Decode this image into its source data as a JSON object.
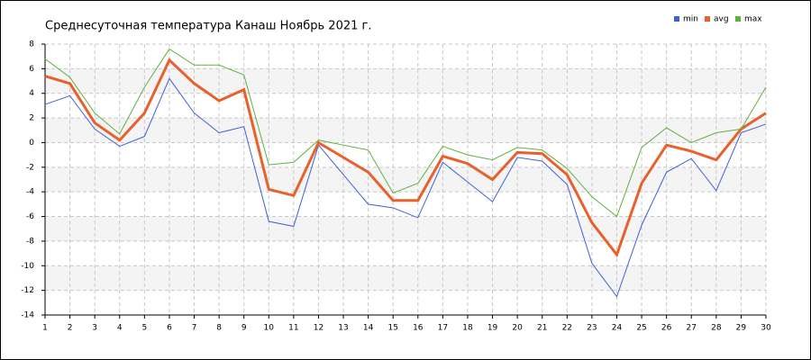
{
  "chart_data": {
    "type": "line",
    "title": "Среднесуточная температура Канаш  Ноябрь 2021 г.",
    "x": [
      1,
      2,
      3,
      4,
      5,
      6,
      7,
      8,
      9,
      10,
      11,
      12,
      13,
      14,
      15,
      16,
      17,
      18,
      19,
      20,
      21,
      22,
      23,
      24,
      25,
      26,
      27,
      28,
      29,
      30
    ],
    "series": [
      {
        "name": "min",
        "color": "#4060d8",
        "values": [
          3.1,
          3.8,
          1.1,
          -0.3,
          0.5,
          5.2,
          2.4,
          0.8,
          1.3,
          -6.4,
          -6.8,
          -0.2,
          -2.6,
          -5.0,
          -5.3,
          -6.1,
          -1.6,
          -3.2,
          -4.8,
          -1.2,
          -1.5,
          -3.4,
          -9.8,
          -12.5,
          -6.7,
          -2.4,
          -1.3,
          -3.9,
          0.8,
          1.5
        ]
      },
      {
        "name": "avg",
        "color": "#e8602c",
        "values": [
          5.4,
          4.8,
          1.6,
          0.2,
          2.4,
          6.7,
          4.8,
          3.4,
          4.3,
          -3.8,
          -4.3,
          0.0,
          -1.2,
          -2.4,
          -4.7,
          -4.7,
          -1.1,
          -1.7,
          -3.0,
          -0.8,
          -0.9,
          -2.6,
          -6.5,
          -9.1,
          -3.3,
          -0.2,
          -0.7,
          -1.4,
          1.1,
          2.4
        ]
      },
      {
        "name": "max",
        "color": "#60b040",
        "values": [
          6.8,
          5.3,
          2.4,
          0.7,
          4.5,
          7.6,
          6.3,
          6.3,
          5.5,
          -1.8,
          -1.6,
          0.2,
          -0.2,
          -0.6,
          -4.1,
          -3.3,
          -0.3,
          -1.0,
          -1.4,
          -0.4,
          -0.6,
          -2.1,
          -4.4,
          -6.0,
          -0.4,
          1.2,
          0.0,
          0.8,
          1.1,
          4.5
        ]
      }
    ],
    "xlim": [
      1,
      30
    ],
    "xticks": [
      1,
      2,
      3,
      4,
      5,
      6,
      7,
      8,
      9,
      10,
      11,
      12,
      13,
      14,
      15,
      16,
      17,
      18,
      19,
      20,
      21,
      22,
      23,
      24,
      25,
      26,
      27,
      28,
      29,
      30
    ],
    "ylim": [
      -14,
      8
    ],
    "yticks": [
      -14,
      -12,
      -10,
      -8,
      -6,
      -4,
      -2,
      0,
      2,
      4,
      6,
      8
    ],
    "grid": true,
    "legend": "top-right"
  }
}
